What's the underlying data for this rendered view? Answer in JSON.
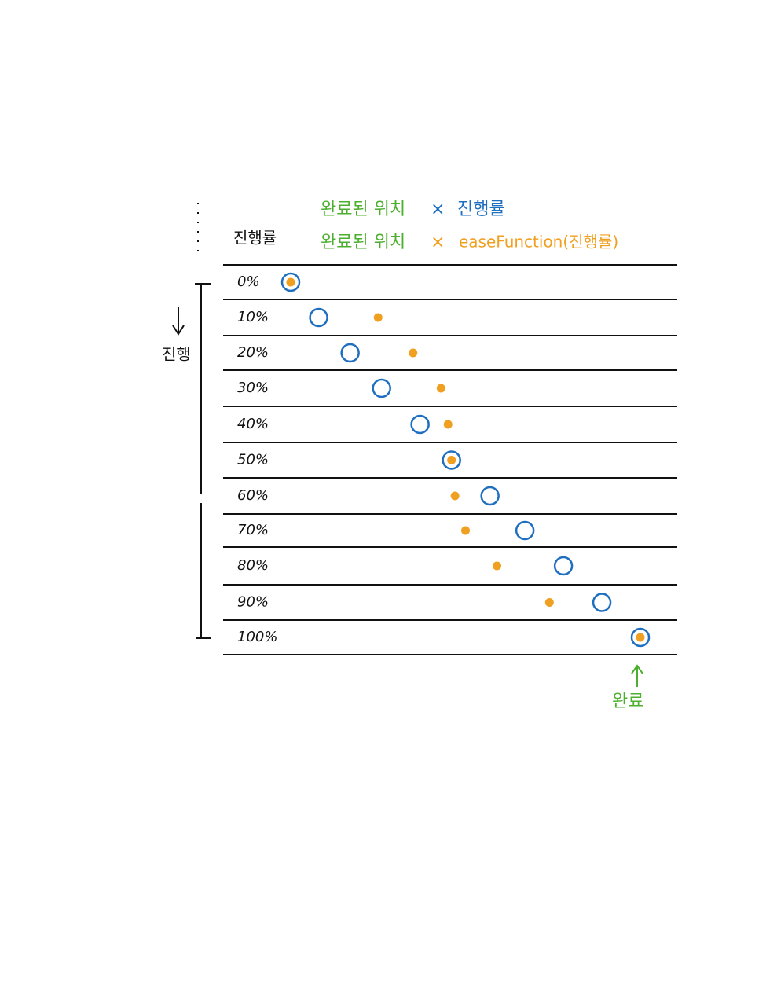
{
  "header": {
    "column": "진행률"
  },
  "legend_linear": {
    "position": "완료된 위치",
    "operator": "×",
    "factor": "진행률"
  },
  "legend_eased": {
    "position": "완료된 위치",
    "operator": "×",
    "factor": "easeFunction(진행률)"
  },
  "side_label": "진행",
  "end_label": "완료",
  "rows": [
    {
      "label": "0%",
      "linear": 0,
      "eased": 0
    },
    {
      "label": "10%",
      "linear": 8,
      "eased": 25
    },
    {
      "label": "20%",
      "linear": 17,
      "eased": 35
    },
    {
      "label": "30%",
      "linear": 26,
      "eased": 43
    },
    {
      "label": "40%",
      "linear": 37,
      "eased": 45
    },
    {
      "label": "50%",
      "linear": 46,
      "eased": 46
    },
    {
      "label": "60%",
      "linear": 57,
      "eased": 47
    },
    {
      "label": "70%",
      "linear": 67,
      "eased": 50
    },
    {
      "label": "80%",
      "linear": 78,
      "eased": 59
    },
    {
      "label": "90%",
      "linear": 89,
      "eased": 74
    },
    {
      "label": "100%",
      "linear": 100,
      "eased": 100
    }
  ]
}
